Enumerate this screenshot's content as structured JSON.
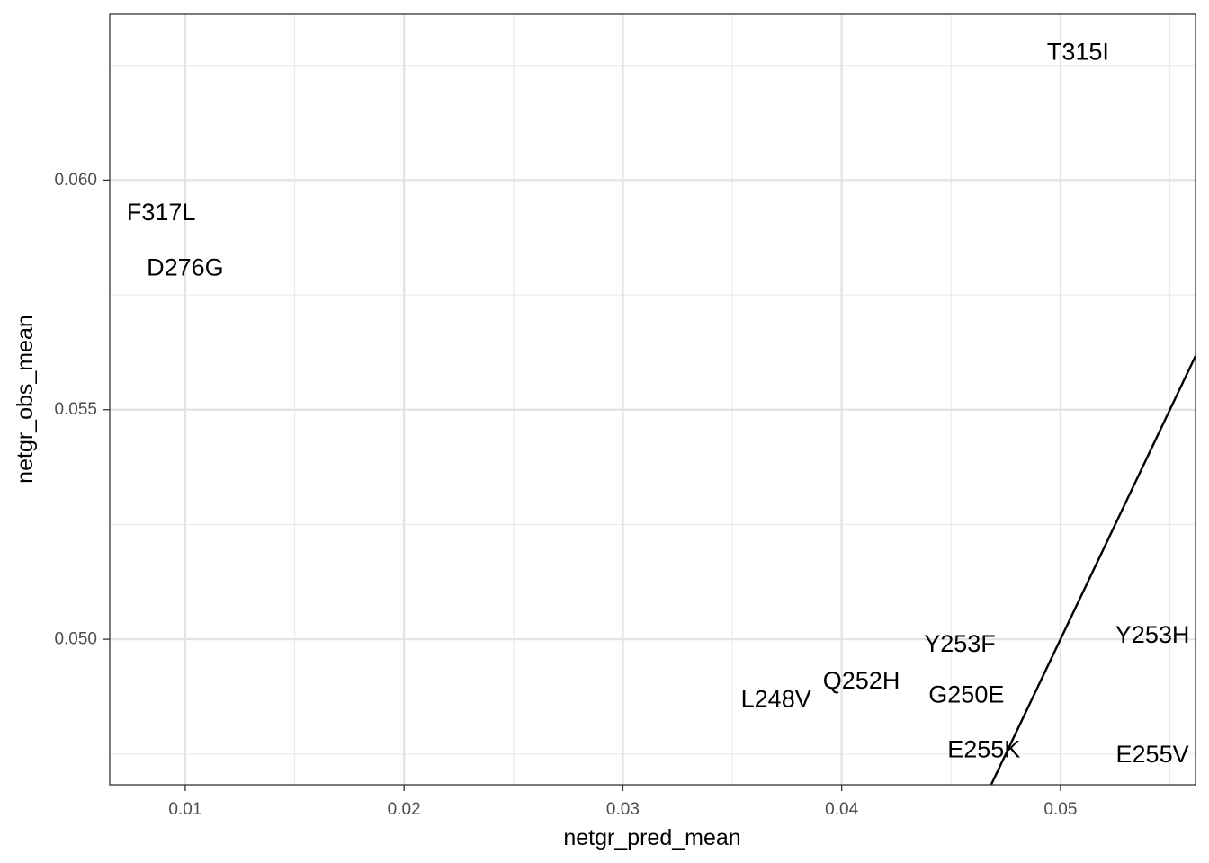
{
  "chart_data": {
    "type": "scatter",
    "title": "",
    "xlabel": "netgr_pred_mean",
    "ylabel": "netgr_obs_mean",
    "xlim": [
      0.00655,
      0.05617
    ],
    "ylim": [
      0.04683,
      0.06361
    ],
    "x_ticks": [
      0.01,
      0.02,
      0.03,
      0.04,
      0.05
    ],
    "x_tick_labels": [
      "0.01",
      "0.02",
      "0.03",
      "0.04",
      "0.05"
    ],
    "y_ticks": [
      0.05,
      0.055,
      0.06
    ],
    "y_tick_labels": [
      "0.050",
      "0.055",
      "0.060"
    ],
    "x_minor_ticks": [
      0.015,
      0.025,
      0.035,
      0.045,
      0.055
    ],
    "y_minor_ticks": [
      0.0475,
      0.0525,
      0.0575,
      0.0625
    ],
    "grid": true,
    "reference_line": {
      "type": "identity",
      "slope": 1,
      "intercept": 0
    },
    "points": [
      {
        "label": "T315I",
        "x": 0.0508,
        "y": 0.0628
      },
      {
        "label": "F317L",
        "x": 0.0089,
        "y": 0.0593
      },
      {
        "label": "D276G",
        "x": 0.01,
        "y": 0.0581
      },
      {
        "label": "Y253H",
        "x": 0.0542,
        "y": 0.0501
      },
      {
        "label": "Y253F",
        "x": 0.0454,
        "y": 0.0499
      },
      {
        "label": "Q252H",
        "x": 0.0409,
        "y": 0.0491
      },
      {
        "label": "L248V",
        "x": 0.037,
        "y": 0.0487
      },
      {
        "label": "G250E",
        "x": 0.0457,
        "y": 0.0488
      },
      {
        "label": "E255K",
        "x": 0.0465,
        "y": 0.0476
      },
      {
        "label": "E255V",
        "x": 0.0542,
        "y": 0.0475
      }
    ]
  }
}
